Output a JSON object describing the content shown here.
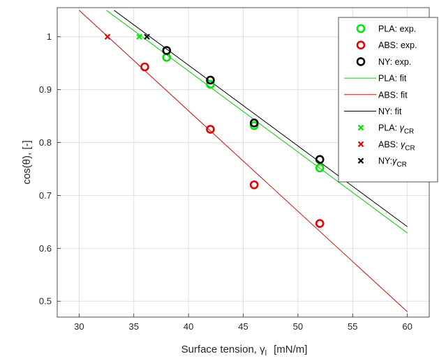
{
  "chart_data": {
    "type": "scatter",
    "xlabel": "Surface tension, γ",
    "xlabel_subscript": "l",
    "xlabel_unit": "[mN/m]",
    "ylabel": "cos(θ), [-]",
    "xlim": [
      28,
      62
    ],
    "ylim": [
      0.47,
      1.055
    ],
    "xticks": [
      30,
      35,
      40,
      45,
      50,
      55,
      60
    ],
    "yticks": [
      0.5,
      0.6,
      0.7,
      0.8,
      0.9,
      1
    ],
    "ytick_labels": [
      "0.5",
      "0.6",
      "0.7",
      "0.8",
      "0.9",
      "1"
    ],
    "grid": true,
    "legend_position": "top-right",
    "series": [
      {
        "name": "PLA: exp.",
        "kind": "markers",
        "marker": "circle",
        "color": "#00e600",
        "x": [
          38,
          42,
          46,
          52
        ],
        "y": [
          0.961,
          0.91,
          0.832,
          0.752
        ]
      },
      {
        "name": "ABS: exp.",
        "kind": "markers",
        "marker": "circle",
        "color": "#e60000",
        "x": [
          36,
          42,
          46,
          52
        ],
        "y": [
          0.943,
          0.825,
          0.72,
          0.647
        ]
      },
      {
        "name": "NY: exp.",
        "kind": "markers",
        "marker": "circle",
        "color": "#000000",
        "x": [
          38,
          42,
          46,
          52
        ],
        "y": [
          0.974,
          0.918,
          0.837,
          0.768
        ]
      },
      {
        "name": "PLA: fit",
        "kind": "line",
        "color": "#00d000",
        "x": [
          32.5,
          60
        ],
        "y": [
          1.05,
          0.629
        ]
      },
      {
        "name": "ABS: fit",
        "kind": "line",
        "color": "#e00000",
        "x": [
          30,
          60
        ],
        "y": [
          1.05,
          0.48
        ]
      },
      {
        "name": "NY: fit",
        "kind": "line",
        "color": "#000000",
        "x": [
          33.2,
          60
        ],
        "y": [
          1.05,
          0.641
        ]
      },
      {
        "name": "PLA: ",
        "sub": "CR",
        "kind": "markers",
        "marker": "x",
        "color": "#00e600",
        "x": [
          35.5
        ],
        "y": [
          1.0
        ]
      },
      {
        "name": "ABS: ",
        "sub": "CR",
        "kind": "markers",
        "marker": "x",
        "color": "#e60000",
        "x": [
          32.6
        ],
        "y": [
          1.0
        ]
      },
      {
        "name": "NY:",
        "sub": "CR",
        "kind": "markers",
        "marker": "x",
        "color": "#000000",
        "x": [
          36.2
        ],
        "y": [
          1.0
        ]
      }
    ]
  }
}
